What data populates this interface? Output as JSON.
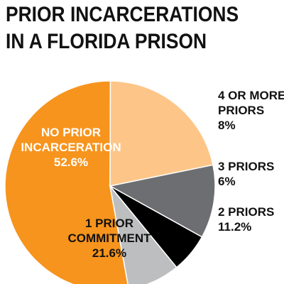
{
  "chart_data": {
    "type": "pie",
    "title": "PRIOR INCARCERATIONS IN A FLORIDA PRISON",
    "title_lines": [
      "PRIOR INCARCERATIONS",
      "IN A FLORIDA PRISON"
    ],
    "slices": [
      {
        "key": "none",
        "label_lines": [
          "NO PRIOR",
          "INCARCERATION"
        ],
        "value_label": "52.6%",
        "value": 52.6,
        "color": "#f7941d",
        "label_color": "#ffffff"
      },
      {
        "key": "one",
        "label_lines": [
          "1 PRIOR",
          "COMMITMENT"
        ],
        "value_label": "21.6%",
        "value": 21.6,
        "color": "#fdc688",
        "label_color": "#111111"
      },
      {
        "key": "two",
        "label_lines": [
          "2 PRIORS"
        ],
        "value_label": "11.2%",
        "value": 11.2,
        "color": "#6d6e71",
        "label_color": "#111111"
      },
      {
        "key": "three",
        "label_lines": [
          "3 PRIORS"
        ],
        "value_label": "6%",
        "value": 6,
        "color": "#000000",
        "label_color": "#111111"
      },
      {
        "key": "four-plus",
        "label_lines": [
          "4 OR MORE",
          "PRIORS"
        ],
        "value_label": "8%",
        "value": 8,
        "color": "#bcbec0",
        "label_color": "#111111"
      }
    ],
    "legend": "labels beside slices"
  }
}
